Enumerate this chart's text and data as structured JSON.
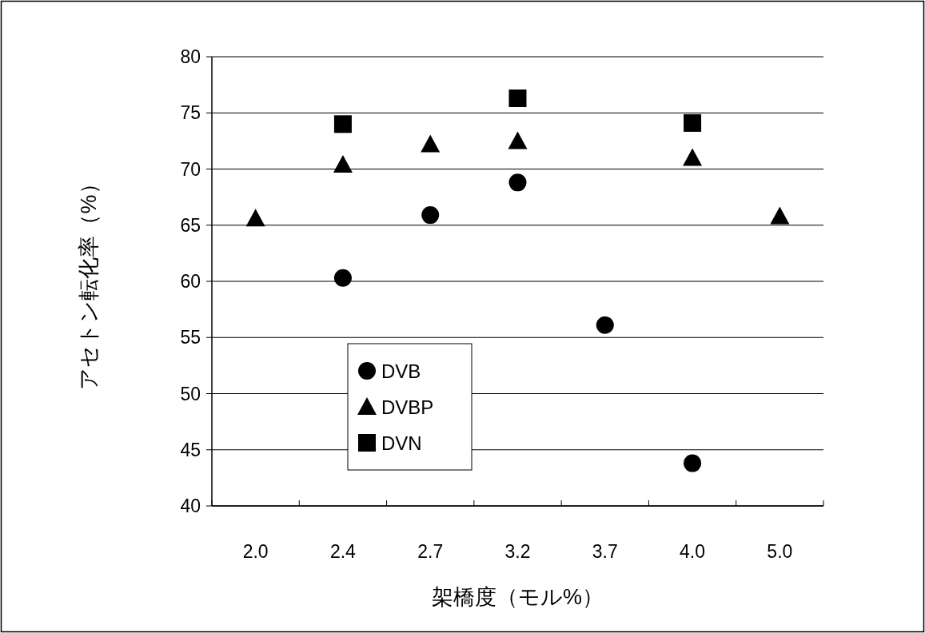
{
  "chart_data": {
    "type": "scatter",
    "xlabel": "架橋度（モル%）",
    "ylabel": "アセトン転化率（%）",
    "categories": [
      "2.0",
      "2.4",
      "2.7",
      "3.2",
      "3.7",
      "4.0",
      "5.0"
    ],
    "series": [
      {
        "name": "DVB",
        "color": "#000000",
        "marker": "circle",
        "values": [
          null,
          60.3,
          65.9,
          68.8,
          56.1,
          43.8,
          null
        ]
      },
      {
        "name": "DVBP",
        "color": "#000000",
        "marker": "triangle",
        "values": [
          65.6,
          70.4,
          72.2,
          72.5,
          null,
          71.0,
          65.8
        ]
      },
      {
        "name": "DVN",
        "color": "#000000",
        "marker": "square",
        "values": [
          null,
          74.0,
          null,
          76.3,
          null,
          74.1,
          null
        ]
      }
    ],
    "ylim": [
      40,
      80
    ],
    "yticks": [
      40,
      45,
      50,
      55,
      60,
      65,
      70,
      75,
      80
    ],
    "grid": "y",
    "legend": "bottom left"
  }
}
